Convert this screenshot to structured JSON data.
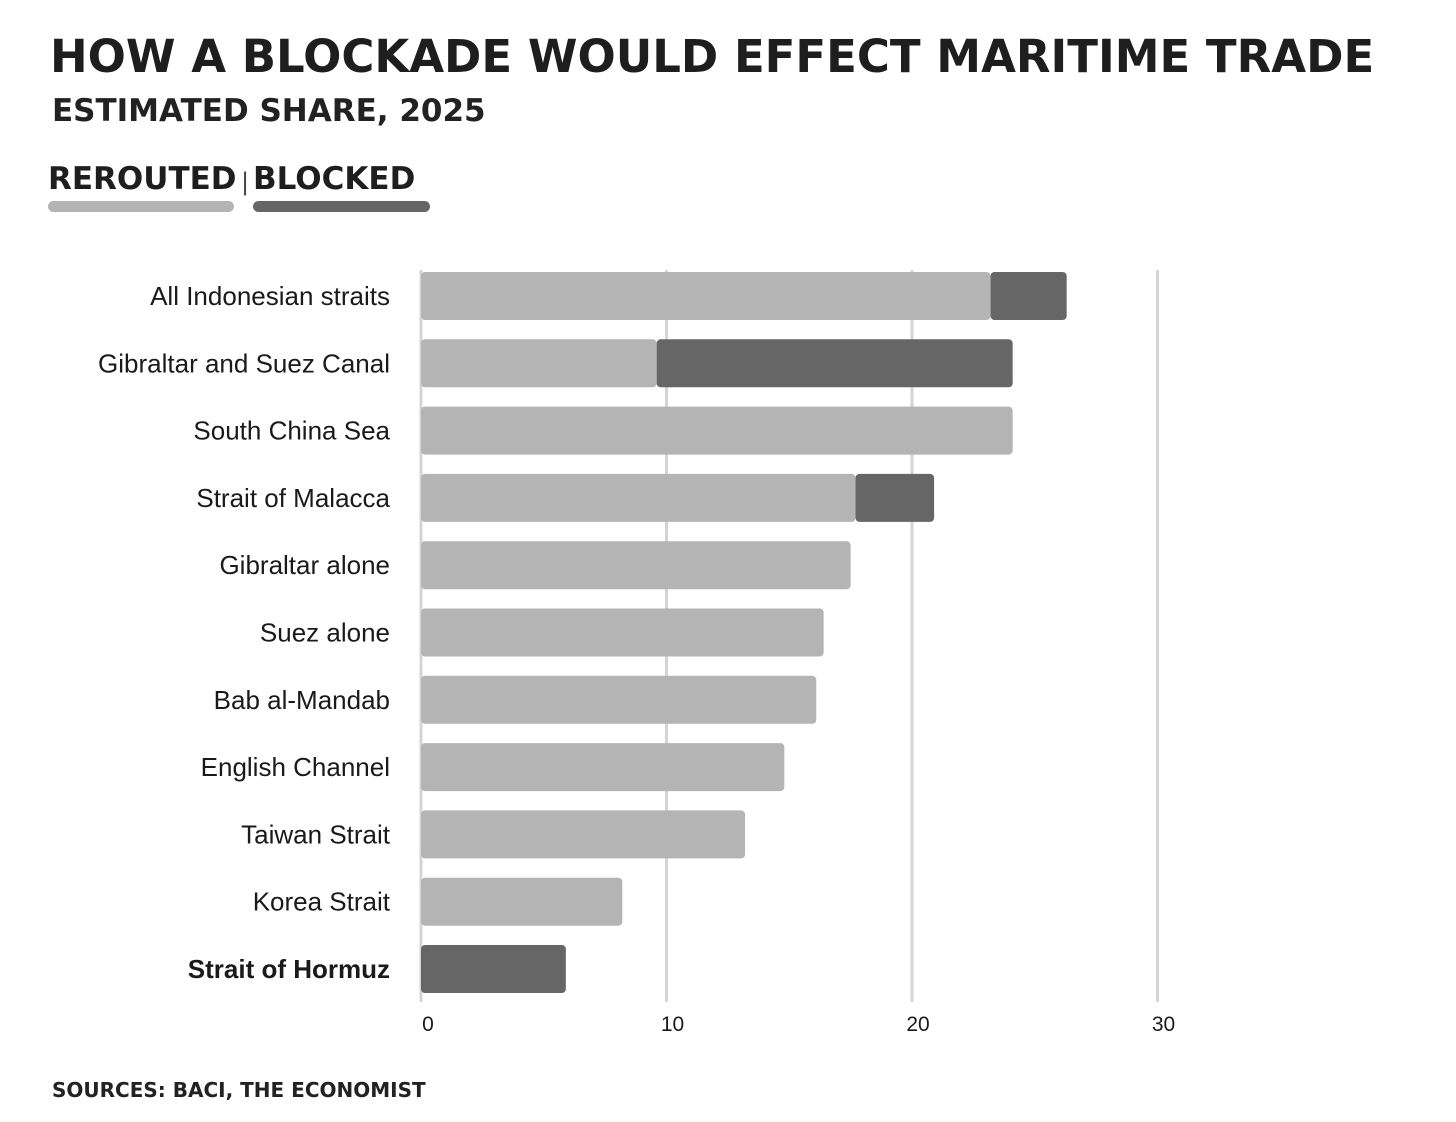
{
  "title": "HOW A BLOCKADE WOULD EFFECT MARITIME TRADE",
  "subtitle": "ESTIMATED SHARE, 2025",
  "legend": {
    "separator": "|",
    "items": [
      {
        "label": "REROUTED",
        "color": "#b5b4b5"
      },
      {
        "label": "BLOCKED",
        "color": "#666666"
      }
    ]
  },
  "source": "SOURCES: BACI, THE ECONOMIST",
  "chart_data": {
    "type": "bar",
    "orientation": "horizontal",
    "stacked": true,
    "title": "HOW A BLOCKADE WOULD EFFECT MARITIME TRADE",
    "subtitle": "ESTIMATED SHARE, 2025",
    "xlabel": "",
    "ylabel": "",
    "xlim": [
      0,
      30
    ],
    "xticks": [
      0,
      10,
      20,
      30
    ],
    "grid": true,
    "legend_position": "top-left",
    "categories": [
      "All Indonesian straits",
      "Gibraltar and Suez Canal",
      "South China Sea",
      "Strait of Malacca",
      "Gibraltar alone",
      "Suez alone",
      "Bab al-Mandab",
      "English Channel",
      "Taiwan Strait",
      "Korea Strait",
      "Strait of Hormuz"
    ],
    "highlighted_category": "Strait of Hormuz",
    "series": [
      {
        "name": "REROUTED",
        "color": "#b5b4b5",
        "values": [
          23.2,
          9.6,
          24.1,
          17.7,
          17.5,
          16.4,
          16.1,
          14.8,
          13.2,
          8.2,
          0
        ]
      },
      {
        "name": "BLOCKED",
        "color": "#666666",
        "values": [
          3.1,
          14.5,
          0,
          3.2,
          0,
          0,
          0,
          0,
          0,
          0,
          5.9
        ]
      }
    ]
  }
}
